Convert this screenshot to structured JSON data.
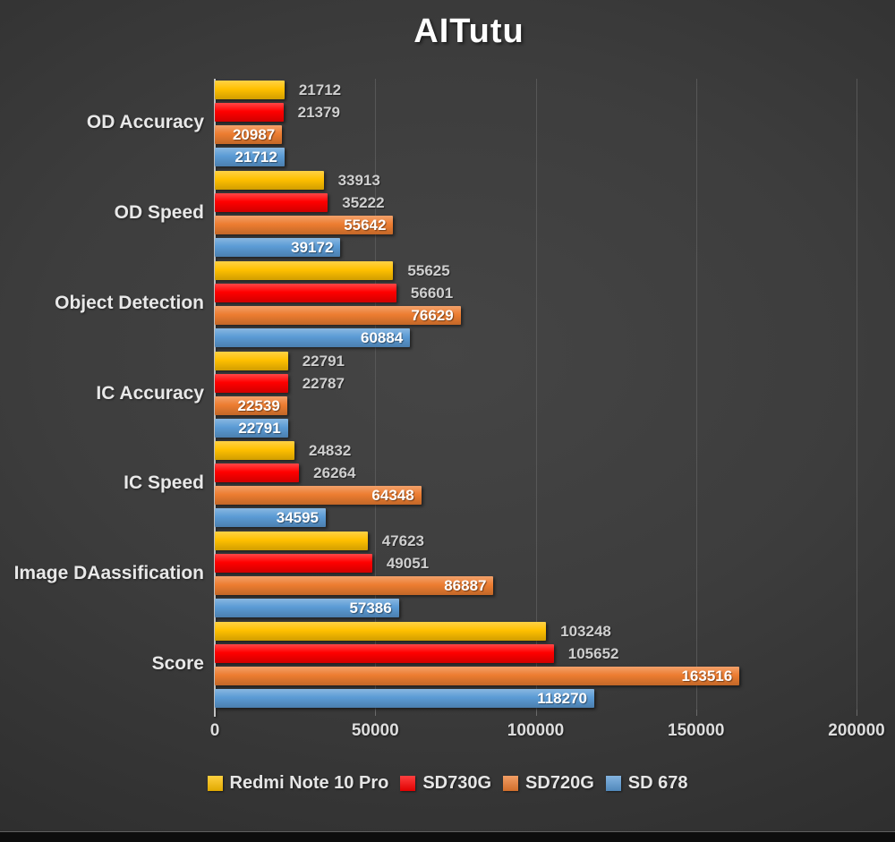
{
  "title": "AITutu",
  "colors": {
    "background_center": "#454545",
    "background_edge": "#252525",
    "axis_line": "#c4c4c4",
    "gridline": "#575757",
    "tick_label": "#dedede",
    "category_label": "#e8e8e8",
    "outside_value_label": "#cfcfcf",
    "inside_value_label": "#ffffff",
    "bottom_strip": "#0d0d0d"
  },
  "chart_data": {
    "type": "bar",
    "orientation": "horizontal",
    "title": "AITutu",
    "categories": [
      "OD Accuracy",
      "OD Speed",
      "Object Detection",
      "IC Accuracy",
      "IC Speed",
      "Image DAassification",
      "Score"
    ],
    "series": [
      {
        "name": "Redmi Note 10 Pro",
        "color": "#FFC000",
        "label_position": "outside",
        "values": [
          21712,
          33913,
          55625,
          22791,
          24832,
          47623,
          103248
        ]
      },
      {
        "name": "SD730G",
        "color": "#FF0000",
        "label_position": "outside",
        "values": [
          21379,
          35222,
          56601,
          22787,
          26264,
          49051,
          105652
        ]
      },
      {
        "name": "SD720G",
        "color": "#ED7D31",
        "label_position": "inside",
        "values": [
          20987,
          55642,
          76629,
          22539,
          64348,
          86887,
          163516
        ]
      },
      {
        "name": "SD 678",
        "color": "#5B9BD5",
        "label_position": "inside",
        "values": [
          21712,
          39172,
          60884,
          22791,
          34595,
          57386,
          118270
        ]
      }
    ],
    "x_axis": {
      "min": 0,
      "max": 200000,
      "tick_interval": 50000,
      "tick_labels": [
        "0",
        "50000",
        "100000",
        "150000",
        "200000"
      ]
    },
    "grid": true,
    "legend_position": "bottom"
  },
  "legend": {
    "items": [
      {
        "label": "Redmi Note 10 Pro",
        "color": "#FFC000"
      },
      {
        "label": "SD730G",
        "color": "#FF0000"
      },
      {
        "label": "SD720G",
        "color": "#ED7D31"
      },
      {
        "label": "SD 678",
        "color": "#5B9BD5"
      }
    ]
  }
}
